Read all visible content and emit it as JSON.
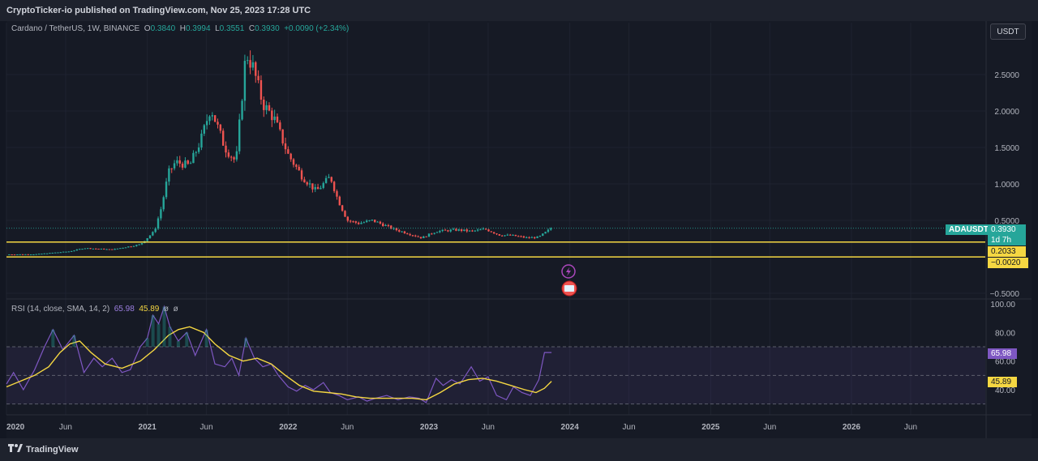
{
  "header": {
    "text": "CryptoTicker-io published on TradingView.com, Nov 25, 2023 17:28 UTC"
  },
  "legend": {
    "symbol": "Cardano / TetherUS, 1W, BINANCE",
    "o_label": "O",
    "o": "0.3840",
    "h_label": "H",
    "h": "0.3994",
    "l_label": "L",
    "l": "0.3551",
    "c_label": "C",
    "c": "0.3930",
    "change": "+0.0090 (+2.34%)"
  },
  "currency_button": "USDT",
  "price_tags": {
    "ticker": "ADAUSDT",
    "last": "0.3930",
    "countdown": "1d 7h",
    "line1": "0.2033",
    "line2": "−0.0020"
  },
  "rsi_legend": {
    "label": "RSI (14, close, SMA, 14, 2)",
    "rsi": "65.98",
    "ma": "45.89",
    "x1": "ø",
    "x2": "ø"
  },
  "rsi_tags": {
    "rsi": "65.98",
    "ma": "45.89"
  },
  "footer": {
    "brand": "TradingView"
  },
  "colors": {
    "up": "#26a69a",
    "down": "#ef5350",
    "rsi": "#7e57c2",
    "rsi_ma": "#f5d742",
    "hline": "#f5d742"
  },
  "chart_data": [
    {
      "type": "candlestick",
      "title": "Cardano / TetherUS, 1W, BINANCE",
      "ylabel": "USDT",
      "ylim": [
        -0.55,
        3.2
      ],
      "y_ticks": [
        2.5,
        2.0,
        1.5,
        1.0,
        0.5,
        -0.5
      ],
      "y_tick_labels": [
        "2.5000",
        "2.0000",
        "1.5000",
        "1.0000",
        "0.5000",
        "−0.5000"
      ],
      "x_range": [
        2020.0,
        2026.95
      ],
      "x_ticks": [
        {
          "label": "2020",
          "t": 2020.0,
          "bold": true
        },
        {
          "label": "Jun",
          "t": 2020.42
        },
        {
          "label": "2021",
          "t": 2021.0,
          "bold": true
        },
        {
          "label": "Jun",
          "t": 2021.42
        },
        {
          "label": "2022",
          "t": 2022.0,
          "bold": true
        },
        {
          "label": "Jun",
          "t": 2022.42
        },
        {
          "label": "2023",
          "t": 2023.0,
          "bold": true
        },
        {
          "label": "Jun",
          "t": 2023.42
        },
        {
          "label": "2024",
          "t": 2024.0,
          "bold": true
        },
        {
          "label": "Jun",
          "t": 2024.42
        },
        {
          "label": "2025",
          "t": 2025.0,
          "bold": true
        },
        {
          "label": "Jun",
          "t": 2025.42
        },
        {
          "label": "2026",
          "t": 2026.0,
          "bold": true
        },
        {
          "label": "Jun",
          "t": 2026.42
        }
      ],
      "horizontal_lines": [
        0.2033,
        -0.002
      ],
      "last_price": 0.393,
      "close_anchors": [
        [
          2020.0,
          0.033
        ],
        [
          2020.2,
          0.035
        ],
        [
          2020.45,
          0.075
        ],
        [
          2020.55,
          0.12
        ],
        [
          2020.75,
          0.1
        ],
        [
          2020.95,
          0.17
        ],
        [
          2021.05,
          0.35
        ],
        [
          2021.1,
          0.68
        ],
        [
          2021.15,
          1.15
        ],
        [
          2021.2,
          1.3
        ],
        [
          2021.3,
          1.25
        ],
        [
          2021.38,
          1.6
        ],
        [
          2021.45,
          2.05
        ],
        [
          2021.55,
          1.5
        ],
        [
          2021.63,
          1.3
        ],
        [
          2021.7,
          2.8
        ],
        [
          2021.75,
          2.6
        ],
        [
          2021.82,
          2.1
        ],
        [
          2021.9,
          1.9
        ],
        [
          2022.0,
          1.4
        ],
        [
          2022.1,
          1.1
        ],
        [
          2022.2,
          0.9
        ],
        [
          2022.3,
          1.1
        ],
        [
          2022.35,
          0.8
        ],
        [
          2022.42,
          0.5
        ],
        [
          2022.5,
          0.46
        ],
        [
          2022.6,
          0.5
        ],
        [
          2022.75,
          0.38
        ],
        [
          2022.95,
          0.26
        ],
        [
          2023.05,
          0.35
        ],
        [
          2023.2,
          0.37
        ],
        [
          2023.3,
          0.35
        ],
        [
          2023.4,
          0.38
        ],
        [
          2023.5,
          0.3
        ],
        [
          2023.6,
          0.29
        ],
        [
          2023.7,
          0.26
        ],
        [
          2023.78,
          0.27
        ],
        [
          2023.87,
          0.393
        ]
      ]
    },
    {
      "type": "line",
      "title": "RSI (14, close, SMA, 14, 2)",
      "ylim": [
        25,
        100
      ],
      "y_ticks": [
        100,
        80,
        60,
        40
      ],
      "y_tick_labels": [
        "100.00",
        "80.00",
        "60.00",
        "40.00"
      ],
      "bands": {
        "upper": 70,
        "middle": 50,
        "lower": 30
      },
      "series": [
        {
          "name": "RSI",
          "points": [
            [
              2020.0,
              44
            ],
            [
              2020.05,
              52
            ],
            [
              2020.12,
              40
            ],
            [
              2020.2,
              54
            ],
            [
              2020.27,
              70
            ],
            [
              2020.33,
              82
            ],
            [
              2020.4,
              68
            ],
            [
              2020.48,
              78
            ],
            [
              2020.55,
              52
            ],
            [
              2020.62,
              62
            ],
            [
              2020.68,
              56
            ],
            [
              2020.75,
              62
            ],
            [
              2020.82,
              52
            ],
            [
              2020.88,
              54
            ],
            [
              2020.95,
              70
            ],
            [
              2021.0,
              76
            ],
            [
              2021.04,
              92
            ],
            [
              2021.08,
              86
            ],
            [
              2021.12,
              98
            ],
            [
              2021.16,
              84
            ],
            [
              2021.22,
              74
            ],
            [
              2021.28,
              80
            ],
            [
              2021.34,
              64
            ],
            [
              2021.42,
              82
            ],
            [
              2021.48,
              58
            ],
            [
              2021.55,
              56
            ],
            [
              2021.6,
              62
            ],
            [
              2021.65,
              50
            ],
            [
              2021.7,
              76
            ],
            [
              2021.76,
              62
            ],
            [
              2021.82,
              56
            ],
            [
              2021.88,
              58
            ],
            [
              2021.93,
              50
            ],
            [
              2022.0,
              42
            ],
            [
              2022.06,
              39
            ],
            [
              2022.12,
              43
            ],
            [
              2022.18,
              40
            ],
            [
              2022.25,
              45
            ],
            [
              2022.3,
              38
            ],
            [
              2022.36,
              36
            ],
            [
              2022.42,
              33
            ],
            [
              2022.5,
              35
            ],
            [
              2022.56,
              32
            ],
            [
              2022.62,
              34
            ],
            [
              2022.7,
              36
            ],
            [
              2022.78,
              33
            ],
            [
              2022.86,
              35
            ],
            [
              2022.93,
              34
            ],
            [
              2022.98,
              31
            ],
            [
              2023.05,
              48
            ],
            [
              2023.1,
              43
            ],
            [
              2023.16,
              47
            ],
            [
              2023.22,
              44
            ],
            [
              2023.3,
              56
            ],
            [
              2023.36,
              46
            ],
            [
              2023.42,
              49
            ],
            [
              2023.48,
              36
            ],
            [
              2023.55,
              33
            ],
            [
              2023.6,
              42
            ],
            [
              2023.66,
              38
            ],
            [
              2023.72,
              36
            ],
            [
              2023.78,
              47
            ],
            [
              2023.82,
              66
            ],
            [
              2023.87,
              65.98
            ]
          ]
        },
        {
          "name": "RSI-based MA",
          "points": [
            [
              2020.0,
              42
            ],
            [
              2020.1,
              46
            ],
            [
              2020.2,
              50
            ],
            [
              2020.3,
              56
            ],
            [
              2020.38,
              66
            ],
            [
              2020.45,
              72
            ],
            [
              2020.52,
              74
            ],
            [
              2020.6,
              66
            ],
            [
              2020.7,
              58
            ],
            [
              2020.82,
              55
            ],
            [
              2020.95,
              60
            ],
            [
              2021.05,
              68
            ],
            [
              2021.15,
              78
            ],
            [
              2021.22,
              82
            ],
            [
              2021.3,
              84
            ],
            [
              2021.4,
              80
            ],
            [
              2021.48,
              72
            ],
            [
              2021.58,
              64
            ],
            [
              2021.68,
              60
            ],
            [
              2021.78,
              62
            ],
            [
              2021.88,
              58
            ],
            [
              2021.98,
              50
            ],
            [
              2022.08,
              43
            ],
            [
              2022.18,
              39
            ],
            [
              2022.28,
              38
            ],
            [
              2022.38,
              37
            ],
            [
              2022.48,
              35
            ],
            [
              2022.58,
              34
            ],
            [
              2022.68,
              34
            ],
            [
              2022.78,
              34
            ],
            [
              2022.88,
              34
            ],
            [
              2022.98,
              33
            ],
            [
              2023.08,
              38
            ],
            [
              2023.18,
              44
            ],
            [
              2023.28,
              47
            ],
            [
              2023.38,
              48
            ],
            [
              2023.48,
              46
            ],
            [
              2023.58,
              43
            ],
            [
              2023.68,
              40
            ],
            [
              2023.76,
              38
            ],
            [
              2023.82,
              41
            ],
            [
              2023.87,
              45.89
            ]
          ]
        }
      ]
    }
  ]
}
